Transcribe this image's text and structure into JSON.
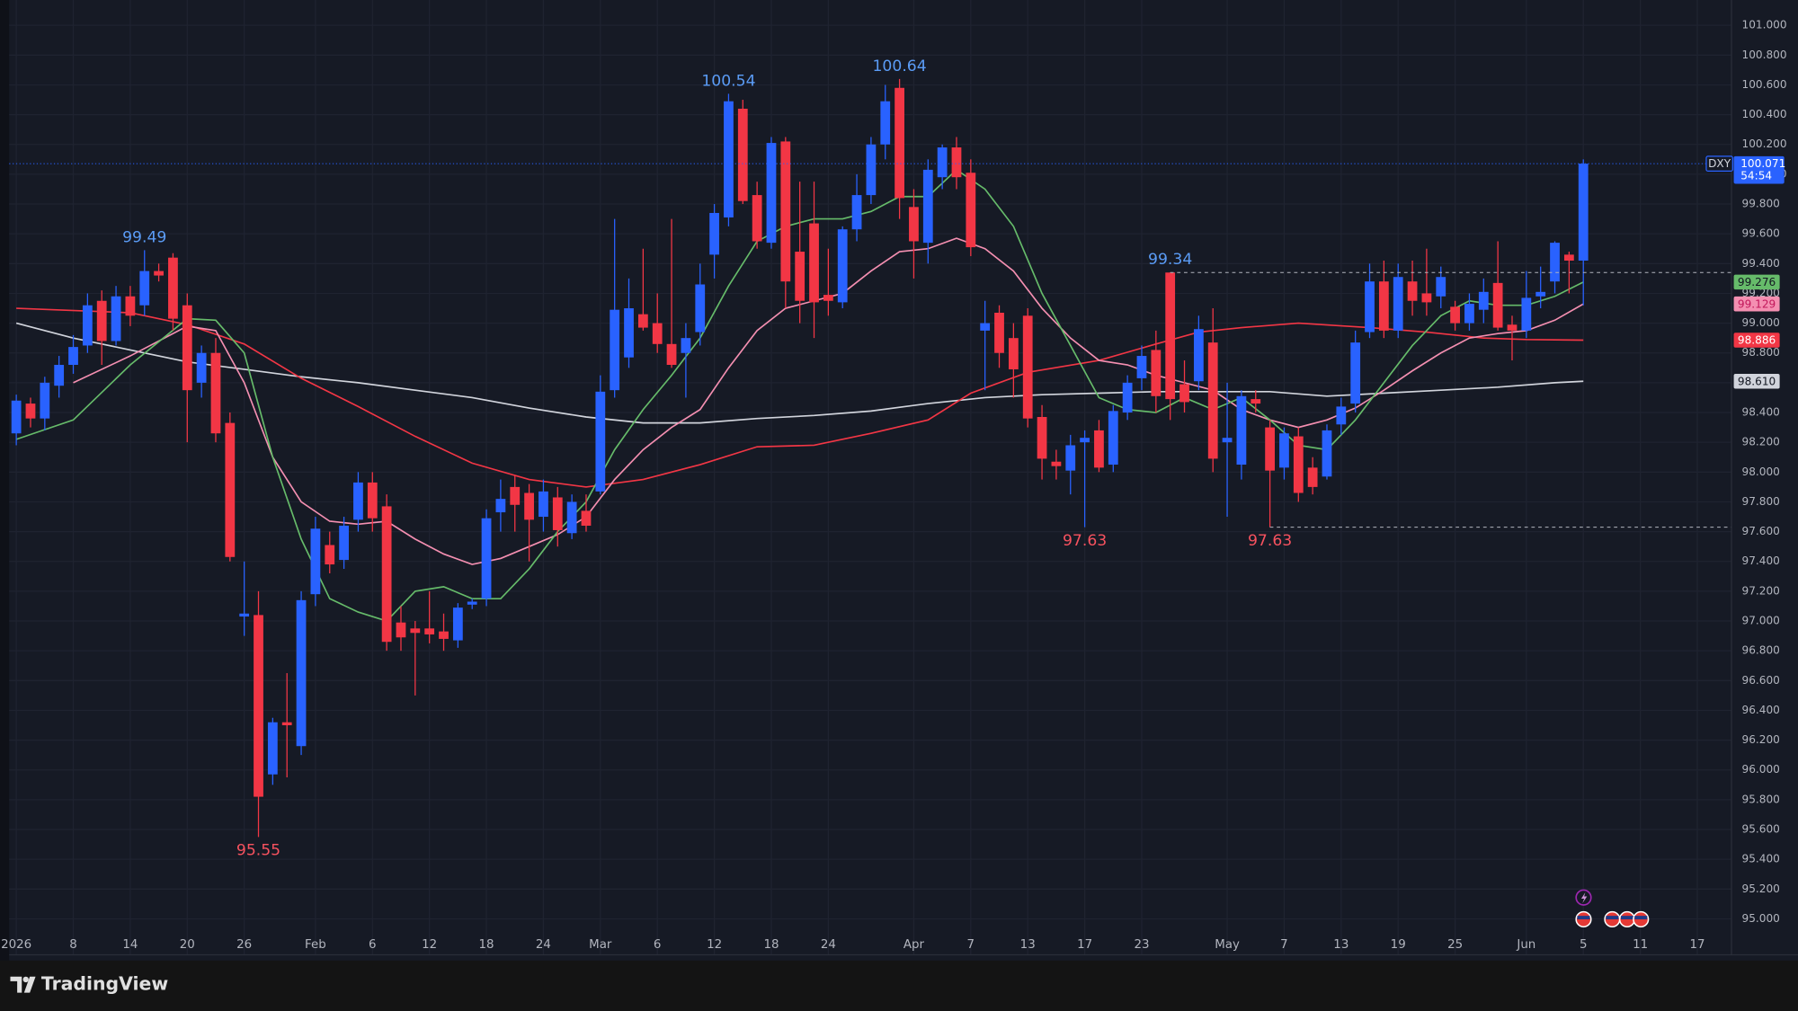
{
  "chart_data": {
    "type": "candlestick",
    "symbol": "DXY",
    "up_color": "#2962ff",
    "down_color": "#f23645",
    "grid": true,
    "xlim": [
      -0.5,
      120.4
    ],
    "ylim": [
      94.92,
      101.17
    ],
    "xticks": [
      {
        "value": 0,
        "label": "2026"
      },
      {
        "value": 4,
        "label": "8"
      },
      {
        "value": 8,
        "label": "14"
      },
      {
        "value": 12,
        "label": "20"
      },
      {
        "value": 16,
        "label": "26"
      },
      {
        "value": 21,
        "label": "Feb"
      },
      {
        "value": 25,
        "label": "6"
      },
      {
        "value": 29,
        "label": "12"
      },
      {
        "value": 33,
        "label": "18"
      },
      {
        "value": 37,
        "label": "24"
      },
      {
        "value": 41,
        "label": "Mar"
      },
      {
        "value": 45,
        "label": "6"
      },
      {
        "value": 49,
        "label": "12"
      },
      {
        "value": 53,
        "label": "18"
      },
      {
        "value": 57,
        "label": "24"
      },
      {
        "value": 63,
        "label": "Apr"
      },
      {
        "value": 67,
        "label": "7"
      },
      {
        "value": 71,
        "label": "13"
      },
      {
        "value": 75,
        "label": "17"
      },
      {
        "value": 79,
        "label": "23"
      },
      {
        "value": 85,
        "label": "May"
      },
      {
        "value": 89,
        "label": "7"
      },
      {
        "value": 93,
        "label": "13"
      },
      {
        "value": 97,
        "label": "19"
      },
      {
        "value": 101,
        "label": "25"
      },
      {
        "value": 106,
        "label": "Jun"
      },
      {
        "value": 110,
        "label": "5"
      },
      {
        "value": 114,
        "label": "11"
      },
      {
        "value": 118,
        "label": "17"
      }
    ],
    "yticks": [
      {
        "value": 95,
        "label": "95.000"
      },
      {
        "value": 95.2,
        "label": "95.200"
      },
      {
        "value": 95.4,
        "label": "95.400"
      },
      {
        "value": 95.6,
        "label": "95.600"
      },
      {
        "value": 95.8,
        "label": "95.800"
      },
      {
        "value": 96,
        "label": "96.000"
      },
      {
        "value": 96.2,
        "label": "96.200"
      },
      {
        "value": 96.4,
        "label": "96.400"
      },
      {
        "value": 96.6,
        "label": "96.600"
      },
      {
        "value": 96.8,
        "label": "96.800"
      },
      {
        "value": 97,
        "label": "97.000"
      },
      {
        "value": 97.2,
        "label": "97.200"
      },
      {
        "value": 97.4,
        "label": "97.400"
      },
      {
        "value": 97.6,
        "label": "97.600"
      },
      {
        "value": 97.8,
        "label": "97.800"
      },
      {
        "value": 98,
        "label": "98.000"
      },
      {
        "value": 98.2,
        "label": "98.200"
      },
      {
        "value": 98.4,
        "label": "98.400"
      },
      {
        "value": 98.6,
        "label": "98.600"
      },
      {
        "value": 98.8,
        "label": "98.800"
      },
      {
        "value": 99,
        "label": "99.000"
      },
      {
        "value": 99.2,
        "label": "99.200"
      },
      {
        "value": 99.4,
        "label": "99.400"
      },
      {
        "value": 99.6,
        "label": "99.600"
      },
      {
        "value": 99.8,
        "label": "99.800"
      },
      {
        "value": 100,
        "label": "100.000"
      },
      {
        "value": 100.2,
        "label": "100.200"
      },
      {
        "value": 100.4,
        "label": "100.400"
      },
      {
        "value": 100.6,
        "label": "100.600"
      },
      {
        "value": 100.8,
        "label": "100.800"
      },
      {
        "value": 101,
        "label": "101.000"
      }
    ],
    "ohlc": [
      [
        98.26,
        98.52,
        98.18,
        98.48
      ],
      [
        98.46,
        98.5,
        98.3,
        98.36
      ],
      [
        98.36,
        98.64,
        98.28,
        98.6
      ],
      [
        98.58,
        98.78,
        98.5,
        98.72
      ],
      [
        98.72,
        98.92,
        98.66,
        98.84
      ],
      [
        98.85,
        99.2,
        98.8,
        99.12
      ],
      [
        99.15,
        99.22,
        98.72,
        98.88
      ],
      [
        98.88,
        99.25,
        98.85,
        99.18
      ],
      [
        99.18,
        99.25,
        98.98,
        99.05
      ],
      [
        99.12,
        99.49,
        99.05,
        99.35
      ],
      [
        99.35,
        99.4,
        99.28,
        99.32
      ],
      [
        99.44,
        99.47,
        98.95,
        99.03
      ],
      [
        99.12,
        99.2,
        98.2,
        98.55
      ],
      [
        98.6,
        98.85,
        98.5,
        98.8
      ],
      [
        98.8,
        98.9,
        98.2,
        98.26
      ],
      [
        98.33,
        98.4,
        97.4,
        97.43
      ],
      [
        97.03,
        97.4,
        96.9,
        97.05
      ],
      [
        97.04,
        97.2,
        95.55,
        95.82
      ],
      [
        95.97,
        96.35,
        95.9,
        96.32
      ],
      [
        96.32,
        96.65,
        95.95,
        96.3
      ],
      [
        96.16,
        97.2,
        96.1,
        97.14
      ],
      [
        97.18,
        97.7,
        97.1,
        97.62
      ],
      [
        97.51,
        97.6,
        97.32,
        97.38
      ],
      [
        97.41,
        97.7,
        97.35,
        97.64
      ],
      [
        97.68,
        98.0,
        97.6,
        97.93
      ],
      [
        97.93,
        98.0,
        97.6,
        97.69
      ],
      [
        97.77,
        97.85,
        96.8,
        96.86
      ],
      [
        96.99,
        97.1,
        96.8,
        96.89
      ],
      [
        96.95,
        97.0,
        96.5,
        96.92
      ],
      [
        96.95,
        97.2,
        96.85,
        96.91
      ],
      [
        96.93,
        97.05,
        96.8,
        96.88
      ],
      [
        96.87,
        97.12,
        96.82,
        97.09
      ],
      [
        97.11,
        97.15,
        97.08,
        97.13
      ],
      [
        97.15,
        97.75,
        97.1,
        97.69
      ],
      [
        97.73,
        97.95,
        97.6,
        97.82
      ],
      [
        97.9,
        97.98,
        97.6,
        97.78
      ],
      [
        97.86,
        97.92,
        97.4,
        97.68
      ],
      [
        97.7,
        97.95,
        97.6,
        97.87
      ],
      [
        97.83,
        97.9,
        97.5,
        97.61
      ],
      [
        97.59,
        97.85,
        97.55,
        97.8
      ],
      [
        97.74,
        97.85,
        97.6,
        97.64
      ],
      [
        97.87,
        98.65,
        97.85,
        98.54
      ],
      [
        98.55,
        99.7,
        98.5,
        99.09
      ],
      [
        98.77,
        99.3,
        98.7,
        99.1
      ],
      [
        99.06,
        99.5,
        98.95,
        98.97
      ],
      [
        99.0,
        99.2,
        98.8,
        98.86
      ],
      [
        98.86,
        99.7,
        98.7,
        98.72
      ],
      [
        98.8,
        99.0,
        98.5,
        98.9
      ],
      [
        98.94,
        99.4,
        98.85,
        99.26
      ],
      [
        99.46,
        99.8,
        99.3,
        99.74
      ],
      [
        99.71,
        100.54,
        99.65,
        100.49
      ],
      [
        100.44,
        100.5,
        99.8,
        99.82
      ],
      [
        99.86,
        99.95,
        99.5,
        99.55
      ],
      [
        99.54,
        100.25,
        99.5,
        100.21
      ],
      [
        100.22,
        100.25,
        99.1,
        99.28
      ],
      [
        99.48,
        99.95,
        99.0,
        99.15
      ],
      [
        99.67,
        99.95,
        98.9,
        99.14
      ],
      [
        99.19,
        99.5,
        99.05,
        99.15
      ],
      [
        99.14,
        99.65,
        99.1,
        99.63
      ],
      [
        99.63,
        100.0,
        99.55,
        99.86
      ],
      [
        99.86,
        100.25,
        99.8,
        100.2
      ],
      [
        100.2,
        100.6,
        100.1,
        100.49
      ],
      [
        100.58,
        100.64,
        99.7,
        99.84
      ],
      [
        99.78,
        99.9,
        99.3,
        99.55
      ],
      [
        99.54,
        100.1,
        99.4,
        100.03
      ],
      [
        99.98,
        100.2,
        99.9,
        100.18
      ],
      [
        100.18,
        100.25,
        99.9,
        99.98
      ],
      [
        100.01,
        100.1,
        99.45,
        99.51
      ],
      [
        98.95,
        99.15,
        98.55,
        99.0
      ],
      [
        99.07,
        99.12,
        98.7,
        98.8
      ],
      [
        98.9,
        99.0,
        98.5,
        98.69
      ],
      [
        99.05,
        99.1,
        98.3,
        98.36
      ],
      [
        98.37,
        98.45,
        97.95,
        98.09
      ],
      [
        98.07,
        98.15,
        97.95,
        98.04
      ],
      [
        98.01,
        98.25,
        97.85,
        98.18
      ],
      [
        98.2,
        98.28,
        97.63,
        98.23
      ],
      [
        98.28,
        98.35,
        98.0,
        98.03
      ],
      [
        98.05,
        98.45,
        98.0,
        98.41
      ],
      [
        98.4,
        98.65,
        98.35,
        98.6
      ],
      [
        98.63,
        98.85,
        98.55,
        98.78
      ],
      [
        98.82,
        98.95,
        98.4,
        98.51
      ],
      [
        99.34,
        99.34,
        98.35,
        98.49
      ],
      [
        98.59,
        98.75,
        98.4,
        98.47
      ],
      [
        98.61,
        99.05,
        98.55,
        98.96
      ],
      [
        98.87,
        99.1,
        98.0,
        98.09
      ],
      [
        98.2,
        98.6,
        97.7,
        98.23
      ],
      [
        98.05,
        98.55,
        97.95,
        98.51
      ],
      [
        98.49,
        98.55,
        98.4,
        98.46
      ],
      [
        98.3,
        98.35,
        97.63,
        98.01
      ],
      [
        98.03,
        98.3,
        97.95,
        98.26
      ],
      [
        98.24,
        98.3,
        97.8,
        97.86
      ],
      [
        98.03,
        98.1,
        97.85,
        97.9
      ],
      [
        97.97,
        98.32,
        97.95,
        98.28
      ],
      [
        98.32,
        98.5,
        98.25,
        98.44
      ],
      [
        98.46,
        98.95,
        98.4,
        98.87
      ],
      [
        98.94,
        99.4,
        98.9,
        99.28
      ],
      [
        99.28,
        99.42,
        98.9,
        98.95
      ],
      [
        98.95,
        99.4,
        98.9,
        99.31
      ],
      [
        99.28,
        99.42,
        99.05,
        99.15
      ],
      [
        99.2,
        99.5,
        99.05,
        99.14
      ],
      [
        99.18,
        99.38,
        99.1,
        99.31
      ],
      [
        99.11,
        99.15,
        98.95,
        99.0
      ],
      [
        99.0,
        99.2,
        98.95,
        99.13
      ],
      [
        99.09,
        99.3,
        99.0,
        99.21
      ],
      [
        99.27,
        99.55,
        98.95,
        98.97
      ],
      [
        98.99,
        99.05,
        98.75,
        98.95
      ],
      [
        98.95,
        99.35,
        98.9,
        99.17
      ],
      [
        99.18,
        99.38,
        99.1,
        99.21
      ],
      [
        99.28,
        99.55,
        99.2,
        99.54
      ],
      [
        99.46,
        99.48,
        99.2,
        99.42
      ],
      [
        99.42,
        100.1,
        99.12,
        100.071
      ]
    ],
    "overlays": [
      {
        "color": "#d1d4dc",
        "tag_text_color": "#131722",
        "x": [
          0,
          4,
          8,
          12,
          16,
          20,
          24,
          28,
          32,
          36,
          40,
          44,
          48,
          52,
          56,
          60,
          64,
          68,
          72,
          76,
          80,
          84,
          88,
          92,
          96,
          100,
          104,
          108,
          110
        ],
        "values": [
          99.0,
          98.9,
          98.82,
          98.74,
          98.69,
          98.64,
          98.6,
          98.55,
          98.5,
          98.43,
          98.37,
          98.33,
          98.33,
          98.36,
          98.38,
          98.41,
          98.46,
          98.5,
          98.52,
          98.53,
          98.54,
          98.54,
          98.54,
          98.51,
          98.53,
          98.55,
          98.57,
          98.6,
          98.61
        ],
        "tag": {
          "value": 98.61,
          "label": "98.610"
        }
      },
      {
        "color": "#f23645",
        "tag_text_color": "#ffffff",
        "x": [
          0,
          8,
          12,
          16,
          20,
          24,
          28,
          32,
          36,
          40,
          44,
          48,
          52,
          56,
          60,
          64,
          67,
          71,
          76,
          80,
          83,
          86,
          90,
          95,
          99,
          103,
          106,
          110
        ],
        "values": [
          99.1,
          99.07,
          98.99,
          98.86,
          98.63,
          98.44,
          98.24,
          98.06,
          97.95,
          97.9,
          97.95,
          98.05,
          98.17,
          98.18,
          98.26,
          98.35,
          98.53,
          98.67,
          98.75,
          98.86,
          98.94,
          98.97,
          99.0,
          98.97,
          98.94,
          98.9,
          98.89,
          98.886
        ],
        "tag": 98.886
      },
      {
        "color": "#f48fb1",
        "tag_text_color": "#c2185b",
        "x": [
          4,
          8,
          12,
          14,
          16,
          18,
          20,
          22,
          24,
          26,
          28,
          30,
          32,
          34,
          36,
          38,
          40,
          42,
          44,
          46,
          48,
          50,
          52,
          54,
          56,
          58,
          60,
          62,
          64,
          66,
          68,
          70,
          72,
          74,
          76,
          78,
          80,
          82,
          84,
          86,
          88,
          90,
          92,
          94,
          96,
          98,
          100,
          102,
          104,
          106,
          108,
          110
        ],
        "values": [
          98.6,
          98.78,
          98.98,
          98.95,
          98.6,
          98.1,
          97.8,
          97.67,
          97.65,
          97.67,
          97.55,
          97.45,
          97.38,
          97.42,
          97.5,
          97.58,
          97.7,
          97.95,
          98.15,
          98.3,
          98.42,
          98.7,
          98.95,
          99.1,
          99.15,
          99.2,
          99.35,
          99.48,
          99.5,
          99.57,
          99.5,
          99.35,
          99.1,
          98.9,
          98.75,
          98.72,
          98.65,
          98.6,
          98.55,
          98.42,
          98.35,
          98.3,
          98.35,
          98.43,
          98.55,
          98.68,
          98.8,
          98.9,
          98.93,
          98.95,
          99.02,
          99.129
        ],
        "tag": 99.129
      },
      {
        "color": "#66bb6a",
        "tag_text_color": "#131722",
        "x": [
          0,
          4,
          8,
          12,
          14,
          16,
          18,
          20,
          22,
          24,
          26,
          28,
          30,
          32,
          34,
          36,
          38,
          40,
          42,
          44,
          46,
          48,
          50,
          52,
          54,
          56,
          58,
          60,
          62,
          64,
          66,
          68,
          70,
          72,
          74,
          76,
          78,
          80,
          82,
          84,
          86,
          88,
          90,
          92,
          94,
          96,
          98,
          100,
          102,
          104,
          106,
          108,
          110
        ],
        "values": [
          98.22,
          98.35,
          98.72,
          99.03,
          99.02,
          98.8,
          98.1,
          97.55,
          97.15,
          97.06,
          97.0,
          97.2,
          97.23,
          97.15,
          97.15,
          97.35,
          97.6,
          97.8,
          98.15,
          98.42,
          98.65,
          98.9,
          99.25,
          99.55,
          99.65,
          99.7,
          99.7,
          99.75,
          99.85,
          99.85,
          100.03,
          99.9,
          99.65,
          99.2,
          98.85,
          98.5,
          98.42,
          98.4,
          98.5,
          98.42,
          98.5,
          98.35,
          98.18,
          98.15,
          98.35,
          98.6,
          98.85,
          99.05,
          99.15,
          99.12,
          99.12,
          99.18,
          99.276
        ],
        "tag": 99.276
      }
    ],
    "annotations": [
      {
        "x": 9,
        "value": 99.49,
        "at": "high",
        "color": "#5b9cf6"
      },
      {
        "x": 50,
        "value": 100.54,
        "at": "high",
        "color": "#5b9cf6"
      },
      {
        "x": 62,
        "value": 100.64,
        "at": "high",
        "color": "#5b9cf6"
      },
      {
        "x": 81,
        "value": 99.34,
        "at": "high",
        "color": "#5b9cf6",
        "line": "dashed"
      },
      {
        "x": 17,
        "value": 95.55,
        "at": "low",
        "color": "#f7525f"
      },
      {
        "x": 75,
        "value": 97.63,
        "at": "low",
        "color": "#f7525f"
      },
      {
        "x": 88,
        "value": 97.63,
        "at": "low",
        "color": "#f7525f",
        "line": "dashed"
      }
    ],
    "last_price": 100.071,
    "countdown": "54:54"
  },
  "footer": {
    "brand": "TradingView"
  }
}
